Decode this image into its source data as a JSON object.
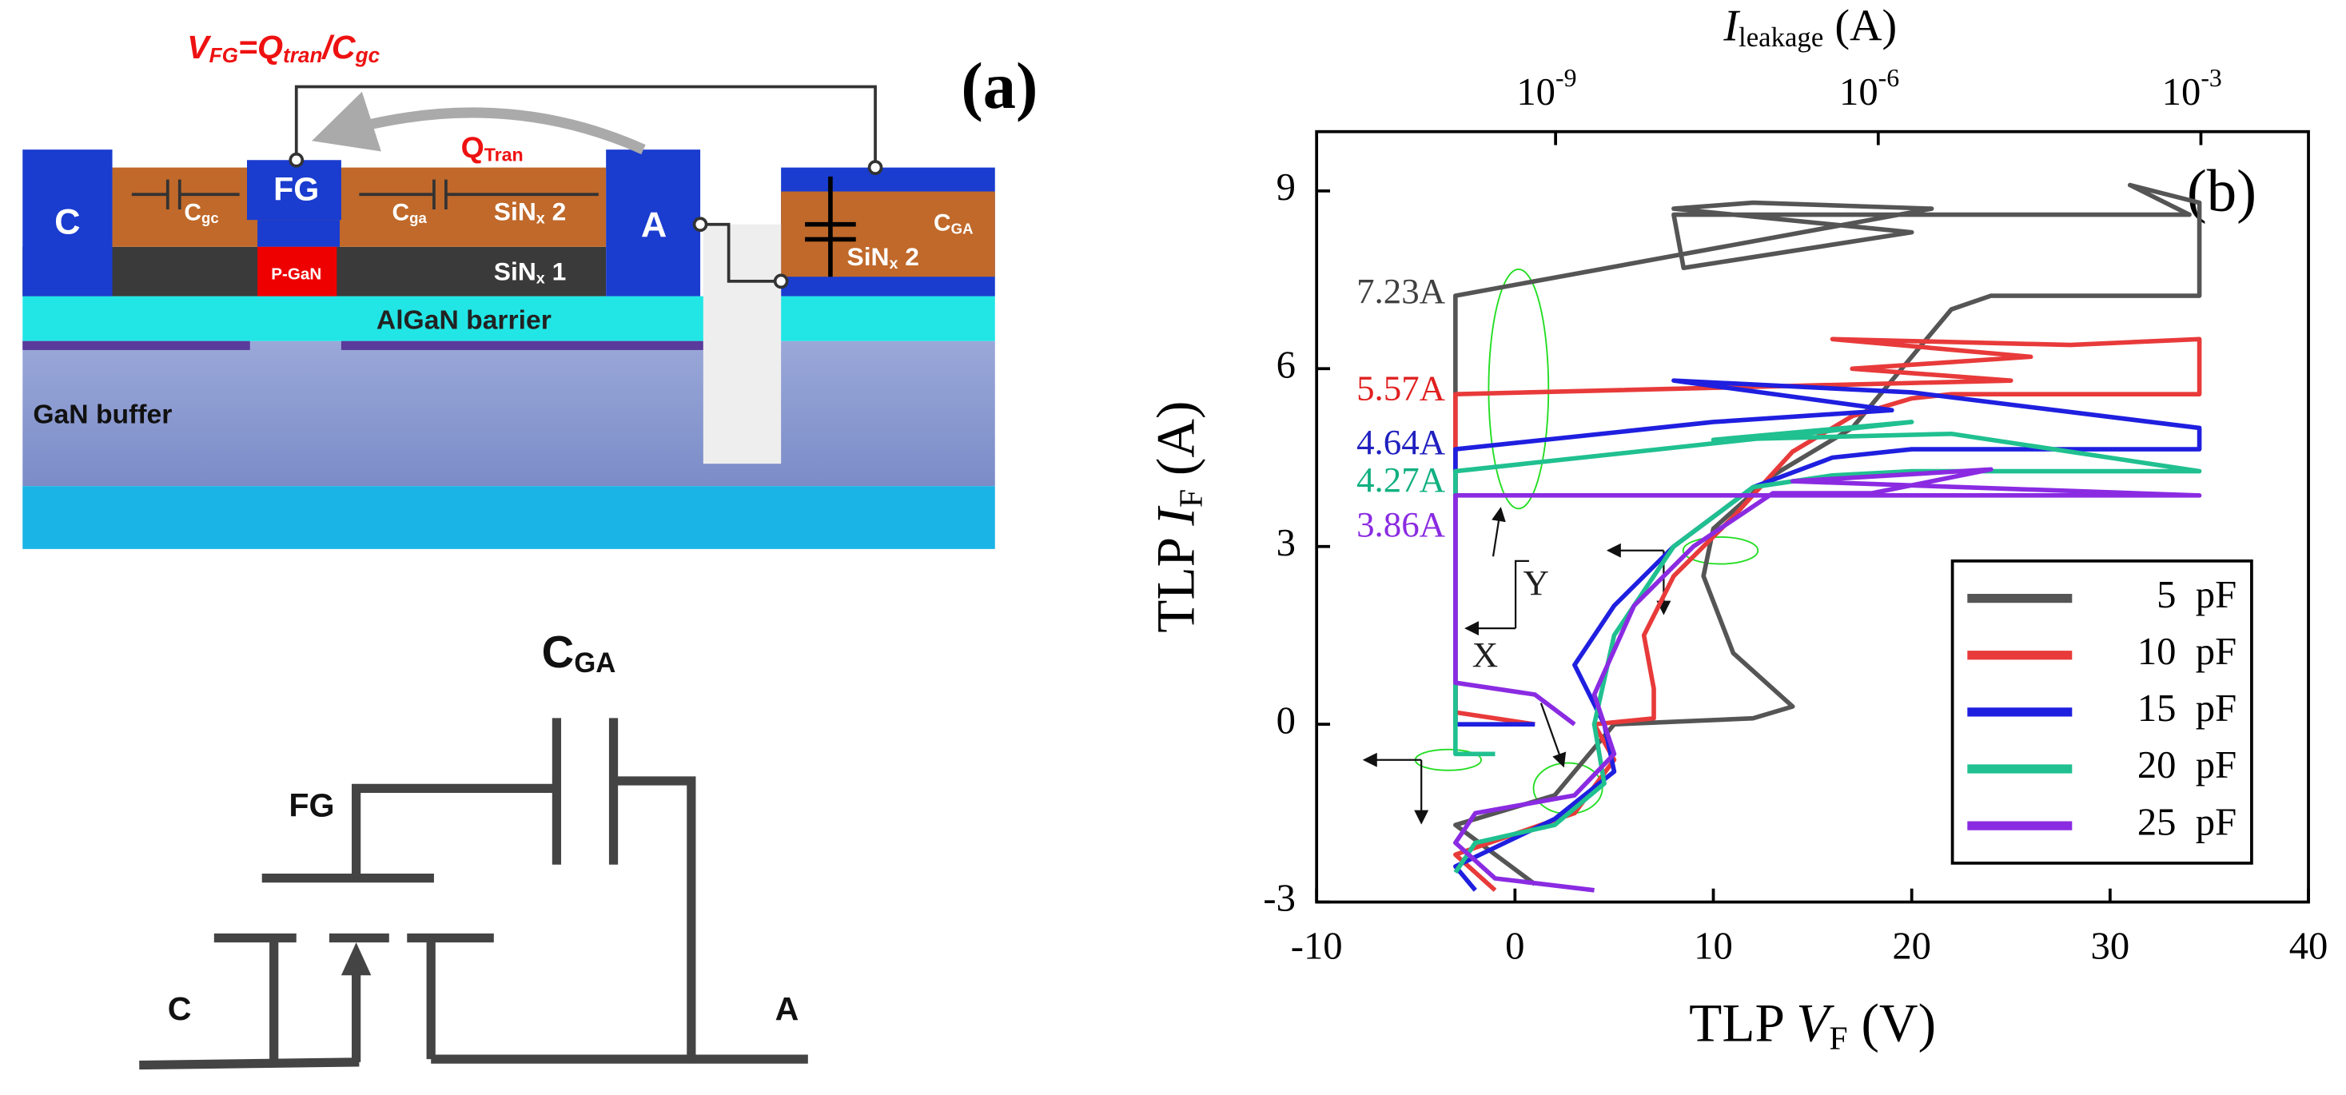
{
  "panel_a": {
    "label": "(a)",
    "equation": [
      {
        "text": "V",
        "sub": "FG"
      },
      {
        "text": "=Q",
        "sub": "tran"
      },
      {
        "text": "/C",
        "sub": "gc"
      }
    ],
    "labels": [
      {
        "text": "C"
      },
      {
        "text": "FG"
      },
      {
        "text": "C",
        "sub": "gc"
      },
      {
        "text": "C",
        "sub": "ga"
      },
      {
        "text": "SiN",
        "sub": "x",
        "tail": " 2"
      },
      {
        "text": "A"
      },
      {
        "text": "P-GaN"
      },
      {
        "text": "SiN",
        "sub": "x",
        "tail": " 1"
      },
      {
        "text": "AlGaN barrier"
      },
      {
        "text": "GaN buffer"
      },
      {
        "text": "C",
        "sub": "GA"
      },
      {
        "text": "SiN",
        "sub": "x",
        "tail": " 2"
      },
      {
        "text": "Q",
        "sub": "Tran"
      }
    ],
    "circuit_labels": [
      {
        "text": "C",
        "sub": "GA"
      },
      {
        "text": "FG"
      },
      {
        "text": "C"
      },
      {
        "text": "A"
      }
    ]
  },
  "chart_data": {
    "type": "line",
    "panel_label": "(b)",
    "xlabel": {
      "text": "TLP ",
      "var": "V",
      "sub": "F",
      "tail": " (V)"
    },
    "ylabel": {
      "text": "TLP ",
      "var": "I",
      "sub": "F",
      "tail": " (A)"
    },
    "x2label": {
      "var": "I",
      "sub": "leakage",
      "tail": " (A)"
    },
    "xlim": [
      -10,
      40
    ],
    "xticks": [
      -10,
      0,
      10,
      20,
      30,
      40
    ],
    "ylim": [
      -3,
      10
    ],
    "yticks": [
      -3,
      0,
      3,
      6,
      9
    ],
    "x2lim": [
      6e-12,
      0.01
    ],
    "x2scale": "log",
    "x2ticks": [
      {
        "value": 1e-09,
        "label": "10",
        "exponent": "-9"
      },
      {
        "value": 1e-06,
        "label": "10",
        "exponent": "-6"
      },
      {
        "value": 0.001,
        "label": "10",
        "exponent": "-3"
      }
    ],
    "legend": "lower right",
    "annotations": [
      {
        "text": "7.23A",
        "color": "#404040"
      },
      {
        "text": "5.57A",
        "color": "#e02020"
      },
      {
        "text": "4.64A",
        "color": "#2020c0"
      },
      {
        "text": "4.27A",
        "color": "#10b080"
      },
      {
        "text": "3.86A",
        "color": "#8a2be2"
      },
      {
        "text": "X",
        "color": "#202020"
      },
      {
        "text": "Y",
        "color": "#202020"
      }
    ],
    "series": [
      {
        "name": "5  pF",
        "color": "#555555",
        "x": [
          1,
          -3,
          2,
          5,
          12,
          14,
          11,
          9.5,
          10,
          13,
          17,
          20,
          22,
          24,
          34.5,
          34.5,
          31,
          34,
          24,
          8,
          8.5,
          20,
          8,
          12,
          21,
          -3,
          -3
        ],
        "values": [
          -2.7,
          -1.7,
          -1.2,
          0,
          0.1,
          0.3,
          1.2,
          2.5,
          3.3,
          4.2,
          5,
          6.2,
          7,
          7.23,
          7.23,
          8.8,
          9.1,
          8.6,
          8.6,
          8.6,
          7.7,
          8.3,
          8.7,
          8.8,
          8.7,
          7.23,
          0
        ]
      },
      {
        "name": "10  pF",
        "color": "#e83a3a",
        "x": [
          -1,
          -3,
          3,
          5,
          4,
          7,
          7,
          6.5,
          8,
          11,
          14,
          17,
          20,
          22,
          34.5,
          34.5,
          28,
          16,
          26,
          17,
          25,
          -3,
          -3,
          1
        ],
        "values": [
          -2.8,
          -2.2,
          -1.5,
          -0.6,
          0,
          0.1,
          0.6,
          1.5,
          2.5,
          3.5,
          4.6,
          5.2,
          5.5,
          5.57,
          5.57,
          6.5,
          6.4,
          6.5,
          6.2,
          6,
          5.8,
          5.57,
          0.2,
          0
        ]
      },
      {
        "name": "15  pF",
        "color": "#1f1fe0",
        "x": [
          -2,
          -3,
          2,
          5,
          4.5,
          3,
          5,
          8,
          12,
          16,
          20,
          34.5,
          34.5,
          20,
          8,
          19,
          10,
          -3,
          -3,
          1
        ],
        "values": [
          -2.8,
          -2.4,
          -1.6,
          -0.8,
          0,
          1,
          2,
          3,
          4,
          4.5,
          4.64,
          4.64,
          5,
          5.6,
          5.8,
          5.3,
          5.1,
          4.64,
          0,
          0
        ]
      },
      {
        "name": "20  pF",
        "color": "#20c090",
        "x": [
          -3,
          -2,
          2,
          4.5,
          4,
          5,
          8,
          12,
          16,
          20,
          34.5,
          22,
          10,
          20,
          -3,
          -3,
          -1
        ],
        "values": [
          -2.5,
          -2,
          -1.7,
          -1,
          0,
          1.5,
          3,
          4,
          4.2,
          4.27,
          4.27,
          4.9,
          4.8,
          5.1,
          4.27,
          -0.5,
          -0.5
        ]
      },
      {
        "name": "25  pF",
        "color": "#8a2be2",
        "x": [
          4,
          -1,
          -3,
          -2,
          3,
          5,
          4,
          6,
          9,
          13,
          18,
          24,
          14,
          34.5,
          -3,
          -3,
          1,
          3
        ],
        "values": [
          -2.8,
          -2.6,
          -2,
          -1.5,
          -1.2,
          -0.5,
          0.5,
          2,
          3,
          3.9,
          3.9,
          4.3,
          4.1,
          3.86,
          3.86,
          0.7,
          0.5,
          0
        ]
      }
    ]
  }
}
